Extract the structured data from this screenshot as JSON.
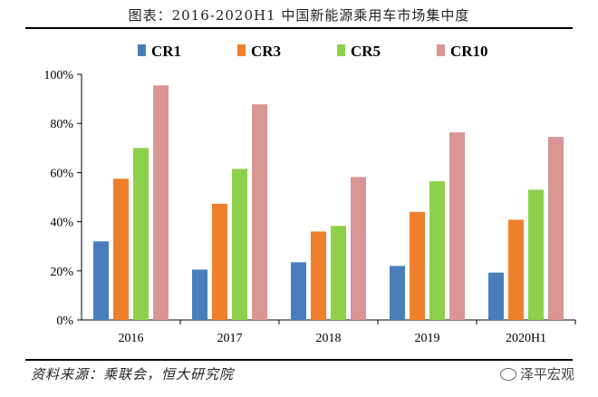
{
  "header": {
    "title": "图表：2016-2020H1 中国新能源乘用车市场集中度"
  },
  "footer": {
    "source": "资料来源：乘联会，恒大研究院",
    "watermark": "泽平宏观"
  },
  "chart_data": {
    "type": "bar",
    "title": "图表：2016-2020H1 中国新能源乘用车市场集中度",
    "xlabel": "",
    "ylabel": "",
    "categories": [
      "2016",
      "2017",
      "2018",
      "2019",
      "2020H1"
    ],
    "ylim": [
      0,
      100
    ],
    "ytick_labels": [
      "0%",
      "20%",
      "40%",
      "60%",
      "80%",
      "100%"
    ],
    "grid": false,
    "legend_position": "top",
    "series": [
      {
        "name": "CR1",
        "color": "#4a7ebb",
        "values": [
          32,
          20.5,
          23.5,
          22,
          19.3
        ]
      },
      {
        "name": "CR3",
        "color": "#f07f2c",
        "values": [
          57.5,
          47.3,
          36,
          44,
          40.8
        ]
      },
      {
        "name": "CR5",
        "color": "#8ecf4b",
        "values": [
          70,
          61.5,
          38.3,
          56.5,
          53
        ]
      },
      {
        "name": "CR10",
        "color": "#d99694",
        "values": [
          95.5,
          87.8,
          58.2,
          76.4,
          74.5
        ]
      }
    ]
  }
}
